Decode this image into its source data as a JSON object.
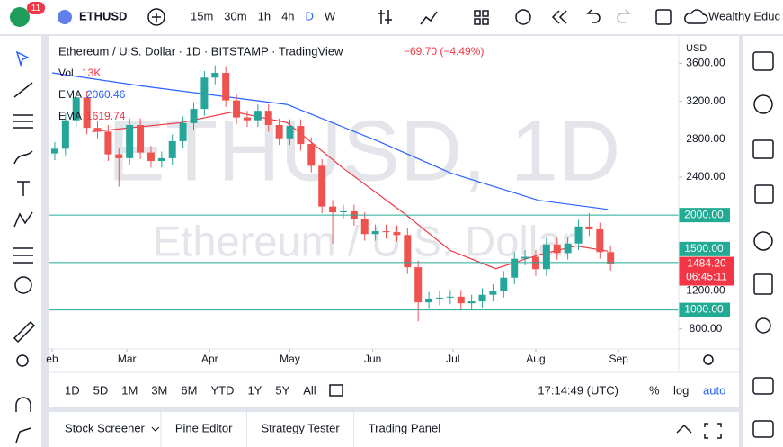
{
  "toolbar": {
    "badge": "11",
    "symbol": "ETHUSD",
    "intervals": [
      "15m",
      "30m",
      "1h",
      "4h",
      "D",
      "W"
    ],
    "account": "Wealthy Educ"
  },
  "legend": {
    "title": "Ethereum / U.S. Dollar · 1D · BITSTAMP · TradingView",
    "change": "−69.70 (−4.49%)",
    "vol_name": "Vol",
    "vol": "13K"
  },
  "watermark": {
    "symbol": "ETHUSD, 1D",
    "name": "Ethereum / U.S. Dollar"
  },
  "currency": "USD",
  "chart_data": {
    "type": "candlestick",
    "up_color": "#26a69a",
    "down_color": "#ef5350",
    "x": [
      1,
      5,
      9,
      13,
      17,
      21,
      25,
      29,
      33,
      37,
      41,
      45,
      49,
      53,
      57,
      61,
      65,
      69,
      73,
      77,
      81,
      85,
      89,
      93,
      97,
      101,
      105,
      109,
      113,
      117,
      121,
      125,
      129,
      133,
      137,
      141,
      145,
      149,
      153,
      157,
      161,
      165,
      169,
      173,
      177,
      181,
      185,
      189,
      193,
      197,
      201,
      205,
      209
    ],
    "open": [
      2650,
      2700,
      3000,
      3240,
      2920,
      2880,
      2640,
      2600,
      2950,
      2660,
      2570,
      2600,
      2780,
      2970,
      3120,
      3450,
      3500,
      3210,
      3030,
      3000,
      3100,
      2950,
      2810,
      2940,
      2750,
      2520,
      2090,
      2030,
      2040,
      1960,
      1800,
      1830,
      1820,
      1790,
      1450,
      1080,
      1120,
      1130,
      1140,
      1070,
      1090,
      1160,
      1200,
      1340,
      1540,
      1560,
      1430,
      1690,
      1600,
      1700,
      1880,
      1850,
      1610
    ],
    "high": [
      2770,
      3070,
      3310,
      3310,
      2990,
      2950,
      2710,
      3020,
      3020,
      2730,
      2670,
      2850,
      3040,
      3190,
      3520,
      3580,
      3570,
      3280,
      3100,
      3170,
      3170,
      3020,
      3010,
      3010,
      2820,
      2590,
      2160,
      2110,
      2110,
      2030,
      1900,
      1900,
      1890,
      1860,
      1520,
      1190,
      1200,
      1210,
      1210,
      1160,
      1230,
      1270,
      1410,
      1610,
      1630,
      1630,
      1760,
      1760,
      1770,
      1950,
      2020,
      1920,
      1680
    ],
    "low": [
      2580,
      2630,
      2930,
      2850,
      2810,
      2570,
      2300,
      2530,
      2590,
      2500,
      2500,
      2530,
      2710,
      2900,
      3050,
      3380,
      3140,
      2960,
      2930,
      2930,
      2880,
      2740,
      2740,
      2680,
      2450,
      2020,
      1700,
      1960,
      1890,
      1730,
      1730,
      1750,
      1720,
      1380,
      880,
      1010,
      1050,
      1060,
      1000,
      1000,
      1020,
      1090,
      1130,
      1270,
      1470,
      1360,
      1360,
      1530,
      1530,
      1630,
      1780,
      1540,
      1414
    ],
    "close": [
      2700,
      3000,
      3240,
      2920,
      2880,
      2640,
      2600,
      2950,
      2660,
      2570,
      2600,
      2780,
      2970,
      3120,
      3450,
      3500,
      3210,
      3030,
      3000,
      3100,
      2950,
      2810,
      2940,
      2750,
      2520,
      2090,
      2030,
      2040,
      1960,
      1800,
      1830,
      1820,
      1790,
      1450,
      1080,
      1120,
      1130,
      1140,
      1070,
      1090,
      1160,
      1200,
      1340,
      1540,
      1560,
      1430,
      1690,
      1600,
      1700,
      1880,
      1850,
      1610,
      1484
    ],
    "series": [
      {
        "name": "EMA",
        "color": "#2962ff",
        "last": 2060.46,
        "x": [
          0,
          34,
          88,
          122,
          149,
          182,
          208
        ],
        "values": [
          3500,
          3360,
          3166,
          2780,
          2445,
          2156,
          2060
        ]
      },
      {
        "name": "EMA",
        "color": "#f23645",
        "last": 1619.74,
        "x": [
          15,
          48,
          68,
          88,
          109,
          132,
          149,
          166,
          182,
          196,
          208
        ],
        "values": [
          2880,
          2974,
          3090,
          2974,
          2493,
          2012,
          1627,
          1435,
          1580,
          1675,
          1620
        ]
      }
    ],
    "xlim": [
      -1,
      234.5
    ],
    "ylim": [
      588,
      3889
    ],
    "xticks": [
      {
        "value": 0,
        "label": "eb"
      },
      {
        "value": 28,
        "label": "Mar"
      },
      {
        "value": 59,
        "label": "Apr"
      },
      {
        "value": 89,
        "label": "May"
      },
      {
        "value": 120,
        "label": "Jun"
      },
      {
        "value": 150,
        "label": "Jul"
      },
      {
        "value": 181,
        "label": "Aug"
      },
      {
        "value": 212,
        "label": "Sep"
      }
    ],
    "yticks": [
      {
        "value": 800,
        "label": "800.00"
      },
      {
        "value": 1200,
        "label": "1200.00"
      },
      {
        "value": 2400,
        "label": "2400.00"
      },
      {
        "value": 2800,
        "label": "2800.00"
      },
      {
        "value": 3200,
        "label": "3200.00"
      },
      {
        "value": 3600,
        "label": "3600.00"
      }
    ],
    "levels": [
      {
        "value": 2000,
        "label": "2000.00"
      },
      {
        "value": 1500,
        "label": "1500.00"
      },
      {
        "value": 1000,
        "label": "1000.00"
      }
    ],
    "level_color": "#22ab94",
    "last_price": {
      "value": 1484.2,
      "label": "1484.20"
    },
    "countdown": "06:45:11"
  },
  "bottom_bar": {
    "ranges": [
      "1D",
      "5D",
      "1M",
      "3M",
      "6M",
      "YTD",
      "1Y",
      "5Y",
      "All"
    ],
    "clock": "17:14:49 (UTC)",
    "options": [
      "%",
      "log",
      "auto"
    ]
  },
  "tabs": [
    "Stock Screener",
    "Pine Editor",
    "Strategy Tester",
    "Trading Panel"
  ]
}
